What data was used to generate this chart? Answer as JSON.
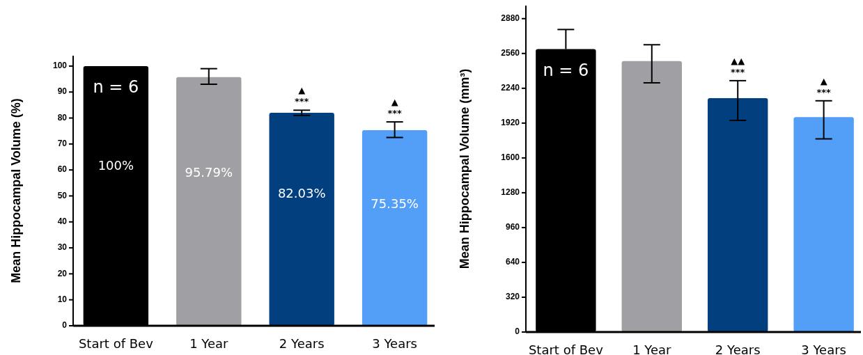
{
  "chart_data": [
    {
      "type": "bar",
      "ylabel": "Mean Hippocampal Volume (%)",
      "categories": [
        "Start of Bev",
        "1 Year",
        "2 Years",
        "3 Years"
      ],
      "values": [
        100,
        95.79,
        82.03,
        75.35
      ],
      "colors": [
        "#000000",
        "#a0a0a4",
        "#023f7f",
        "#539ff8"
      ],
      "value_labels": [
        "100%",
        "95.79%",
        "82.03%",
        "75.35%"
      ],
      "errors": [
        null,
        [
          93,
          99
        ],
        [
          81,
          83
        ],
        [
          72.5,
          78.5
        ]
      ],
      "ylim": [
        0,
        104
      ],
      "yticks": [
        0,
        10,
        20,
        30,
        40,
        50,
        60,
        70,
        80,
        90,
        100
      ],
      "annotations": [
        "n = 6",
        "▲",
        "***",
        "▲",
        "***"
      ]
    },
    {
      "type": "bar",
      "ylabel": "Mean Hippocampal Volume (mm³)",
      "categories": [
        "Start of Bev",
        "1 Year",
        "2 Years",
        "3 Years"
      ],
      "values": [
        2600,
        2490,
        2150,
        1975
      ],
      "colors": [
        "#000000",
        "#a0a0a4",
        "#023f7f",
        "#539ff8"
      ],
      "errors": [
        [
          2600,
          2780
        ],
        [
          2290,
          2640
        ],
        [
          1945,
          2310
        ],
        [
          1775,
          2125
        ]
      ],
      "ylim": [
        0,
        3000
      ],
      "yticks": [
        0,
        320,
        640,
        960,
        1280,
        1600,
        1920,
        2240,
        2560,
        2880
      ],
      "annotations": [
        "n = 6",
        "▲▲",
        "***",
        "▲",
        "***"
      ]
    }
  ]
}
